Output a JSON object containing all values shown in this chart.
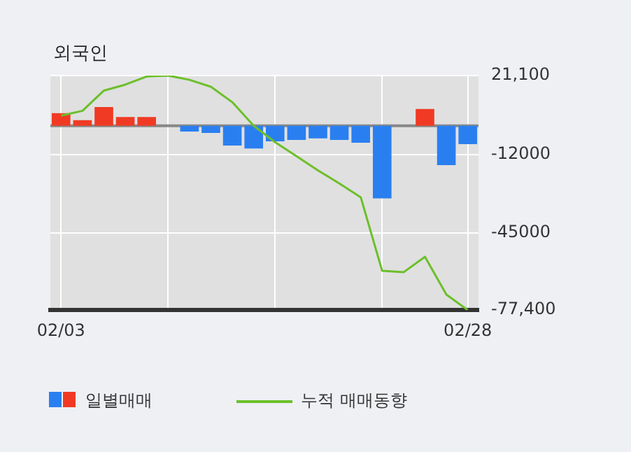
{
  "chart_data": {
    "type": "bar",
    "title": "외국인",
    "categories": [
      "02/03",
      null,
      null,
      null,
      null,
      null,
      null,
      null,
      null,
      null,
      null,
      null,
      null,
      null,
      null,
      null,
      null,
      null,
      null,
      "02/28"
    ],
    "series": [
      {
        "name": "일별매매",
        "colors": [
          "#f03a24",
          "#f03a24",
          "#f03a24",
          "#f03a24",
          "#f03a24",
          "#f03a24",
          "#2a7ff0",
          "#2a7ff0",
          "#2a7ff0",
          "#2a7ff0",
          "#2a7ff0",
          "#2a7ff0",
          "#2a7ff0",
          "#2a7ff0",
          "#2a7ff0",
          "#2a7ff0",
          "#2a7ff0",
          "#f03a24",
          "#2a7ff0",
          "#2a7ff0"
        ],
        "values": [
          5300,
          2400,
          7900,
          3700,
          3700,
          0,
          -2400,
          -3000,
          -8300,
          -9500,
          -6500,
          -5900,
          -5300,
          -5900,
          -7100,
          -30500,
          0,
          7100,
          -16500,
          -7700
        ]
      },
      {
        "name": "누적 매매동향",
        "type": "line",
        "color": "#6cbf2a",
        "values": [
          4300,
          6300,
          14800,
          17300,
          20700,
          21100,
          19300,
          16400,
          9900,
          0,
          -6900,
          -12800,
          -18700,
          -24200,
          -30000,
          -60900,
          -61500,
          -55000,
          -70900,
          -77400
        ]
      }
    ],
    "ylim": [
      -77400,
      21100
    ],
    "yticks": [
      {
        "value": 21100,
        "label": "21,100"
      },
      -12000,
      -45000,
      {
        "value": -77400,
        "label": "-77,400"
      }
    ],
    "ref_lines": [
      {
        "axis": "y",
        "value": 0,
        "color": "#888888"
      }
    ],
    "grid": true,
    "legend": "bottom",
    "marker": "none",
    "line_style": "solid"
  }
}
